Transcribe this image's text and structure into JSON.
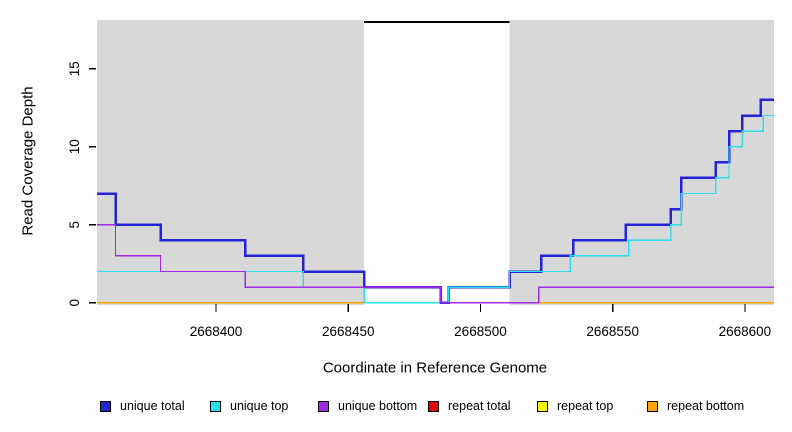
{
  "chart_data": {
    "type": "line",
    "subtype": "step",
    "title": "",
    "xlabel": "Coordinate in Reference Genome",
    "ylabel": "Read Coverage Depth",
    "xlim": [
      2668355,
      2668611
    ],
    "ylim": [
      0,
      18.2
    ],
    "x_ticks": [
      2668400,
      2668450,
      2668500,
      2668550,
      2668600
    ],
    "y_ticks": [
      0,
      5,
      10,
      15
    ],
    "grid": false,
    "legend_position": "bottom",
    "background": {
      "plot_fill": "#d8d8d8",
      "gap_fill": "#ffffff",
      "gap_range": [
        2668456,
        2668511
      ],
      "gap_marker_y": 18,
      "gap_marker_color": "#000000"
    },
    "series": [
      {
        "name": "repeat total",
        "key": "repeat-total",
        "color": "#e80000",
        "width": 1.4,
        "points": [
          [
            2668355,
            0
          ]
        ],
        "xend": 2668611
      },
      {
        "name": "repeat top",
        "key": "repeat-top",
        "color": "#f8f800",
        "width": 1.4,
        "points": [
          [
            2668355,
            0
          ]
        ],
        "xend": 2668611
      },
      {
        "name": "repeat bottom",
        "key": "repeat-bottom",
        "color": "#ffa400",
        "width": 1.4,
        "points": [
          [
            2668355,
            0
          ]
        ],
        "xend": 2668611
      },
      {
        "name": "unique total",
        "key": "unique-total",
        "color": "#2424d6",
        "width": 2.5,
        "points": [
          [
            2668355,
            7
          ],
          [
            2668362,
            5
          ],
          [
            2668379,
            4
          ],
          [
            2668411,
            3
          ],
          [
            2668433,
            2
          ],
          [
            2668456,
            1
          ],
          [
            2668485,
            0
          ],
          [
            2668488,
            1
          ],
          [
            2668511,
            2
          ],
          [
            2668523,
            3
          ],
          [
            2668535,
            4
          ],
          [
            2668555,
            5
          ],
          [
            2668572,
            6
          ],
          [
            2668576,
            8
          ],
          [
            2668589,
            9
          ],
          [
            2668594,
            11
          ],
          [
            2668599,
            12
          ],
          [
            2668606,
            13
          ]
        ],
        "xend": 2668611
      },
      {
        "name": "unique top",
        "key": "unique-top",
        "color": "#26e2ee",
        "width": 1.4,
        "points": [
          [
            2668355,
            2
          ],
          [
            2668433,
            1
          ],
          [
            2668456,
            0
          ],
          [
            2668488,
            1
          ],
          [
            2668511,
            2
          ],
          [
            2668534,
            3
          ],
          [
            2668556,
            4
          ],
          [
            2668572,
            5
          ],
          [
            2668576,
            7
          ],
          [
            2668589,
            8
          ],
          [
            2668594,
            10
          ],
          [
            2668599,
            11
          ],
          [
            2668607,
            12
          ]
        ],
        "xend": 2668611
      },
      {
        "name": "unique bottom",
        "key": "unique-bottom",
        "color": "#a428e8",
        "width": 1.4,
        "points": [
          [
            2668355,
            5
          ],
          [
            2668362,
            3
          ],
          [
            2668379,
            2
          ],
          [
            2668411,
            1
          ],
          [
            2668485,
            0
          ],
          [
            2668522,
            1
          ]
        ],
        "xend": 2668611
      }
    ],
    "legend": [
      {
        "label": "unique total",
        "color": "#2424d6"
      },
      {
        "label": "unique top",
        "color": "#26e2ee"
      },
      {
        "label": "unique bottom",
        "color": "#a428e8"
      },
      {
        "label": "repeat total",
        "color": "#e80000"
      },
      {
        "label": "repeat top",
        "color": "#f8f800"
      },
      {
        "label": "repeat bottom",
        "color": "#ffa400"
      }
    ]
  }
}
